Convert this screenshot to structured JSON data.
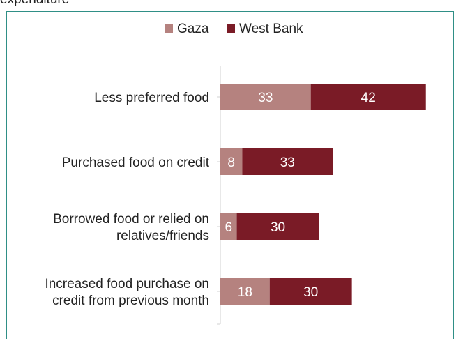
{
  "header": {
    "fragment": "expenditure"
  },
  "chart_data": {
    "type": "bar",
    "orientation": "horizontal",
    "stacked": true,
    "categories": [
      [
        "Less preferred food"
      ],
      [
        "Purchased food on credit"
      ],
      [
        "Borrowed food or relied on",
        "relatives/friends"
      ],
      [
        "Increased food purchase on",
        "credit from previous month"
      ]
    ],
    "series": [
      {
        "name": "Gaza",
        "color": "#b5827f",
        "values": [
          33,
          8,
          6,
          18
        ]
      },
      {
        "name": "West Bank",
        "color": "#7a1b26",
        "values": [
          42,
          33,
          30,
          30
        ]
      }
    ],
    "legend_position": "top",
    "grid": false,
    "xlim": [
      0,
      100
    ]
  }
}
